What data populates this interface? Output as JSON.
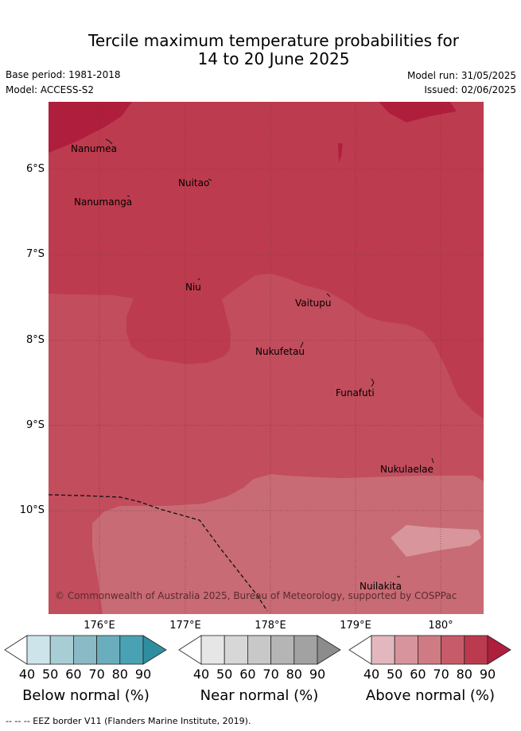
{
  "title_line1": "Tercile maximum temperature probabilities for",
  "title_line2": "14 to 20 June 2025",
  "base_period": "Base period: 1981-2018",
  "model": "Model: ACCESS-S2",
  "model_run": "Model run: 31/05/2025",
  "issued": "Issued: 02/06/2025",
  "lat_labels": [
    "6°S",
    "7°S",
    "8°S",
    "9°S",
    "10°S"
  ],
  "lon_labels": [
    "176°E",
    "177°E",
    "178°E",
    "179°E",
    "180°"
  ],
  "places": {
    "nanumea": "Nanumea",
    "nuitao": "Nuitao",
    "nanumanga": "Nanumanga",
    "niu": "Niu",
    "vaitupu": "Vaitupu",
    "nukufetau": "Nukufetau",
    "funafuti": "Funafuti",
    "nukulaelae": "Nukulaelae",
    "nuilakita": "Nuilakita"
  },
  "copyright": "© Commonwealth of Australia 2025, Bureau of Meteorology, supported by COSPPac",
  "colorbars": {
    "ticks": [
      "40",
      "50",
      "60",
      "70",
      "80",
      "90"
    ],
    "below": {
      "label": "Below normal (%)",
      "colors": [
        "#ffffff",
        "#cde5ea",
        "#a9cdd4",
        "#8abac6",
        "#6aaebd",
        "#48a2b3",
        "#2e8ea0"
      ]
    },
    "near": {
      "label": "Near normal (%)",
      "colors": [
        "#ffffff",
        "#e6e6e6",
        "#d7d7d7",
        "#c8c8c8",
        "#b5b5b5",
        "#a2a2a2",
        "#8c8c8c"
      ]
    },
    "above": {
      "label": "Above normal (%)",
      "colors": [
        "#ffffff",
        "#e2b8be",
        "#d8949c",
        "#cf7b83",
        "#c75b69",
        "#bc3a4e",
        "#b01e3d"
      ]
    }
  },
  "map_colors": {
    "above_50": "#c86b74",
    "above_50_light": "#d8959c",
    "above_60": "#c24d5c",
    "above_70": "#bd3b4e",
    "above_80": "#b01e3d"
  },
  "eez_note": "--  --  -- EEZ border V11 (Flanders Marine Institute, 2019)."
}
